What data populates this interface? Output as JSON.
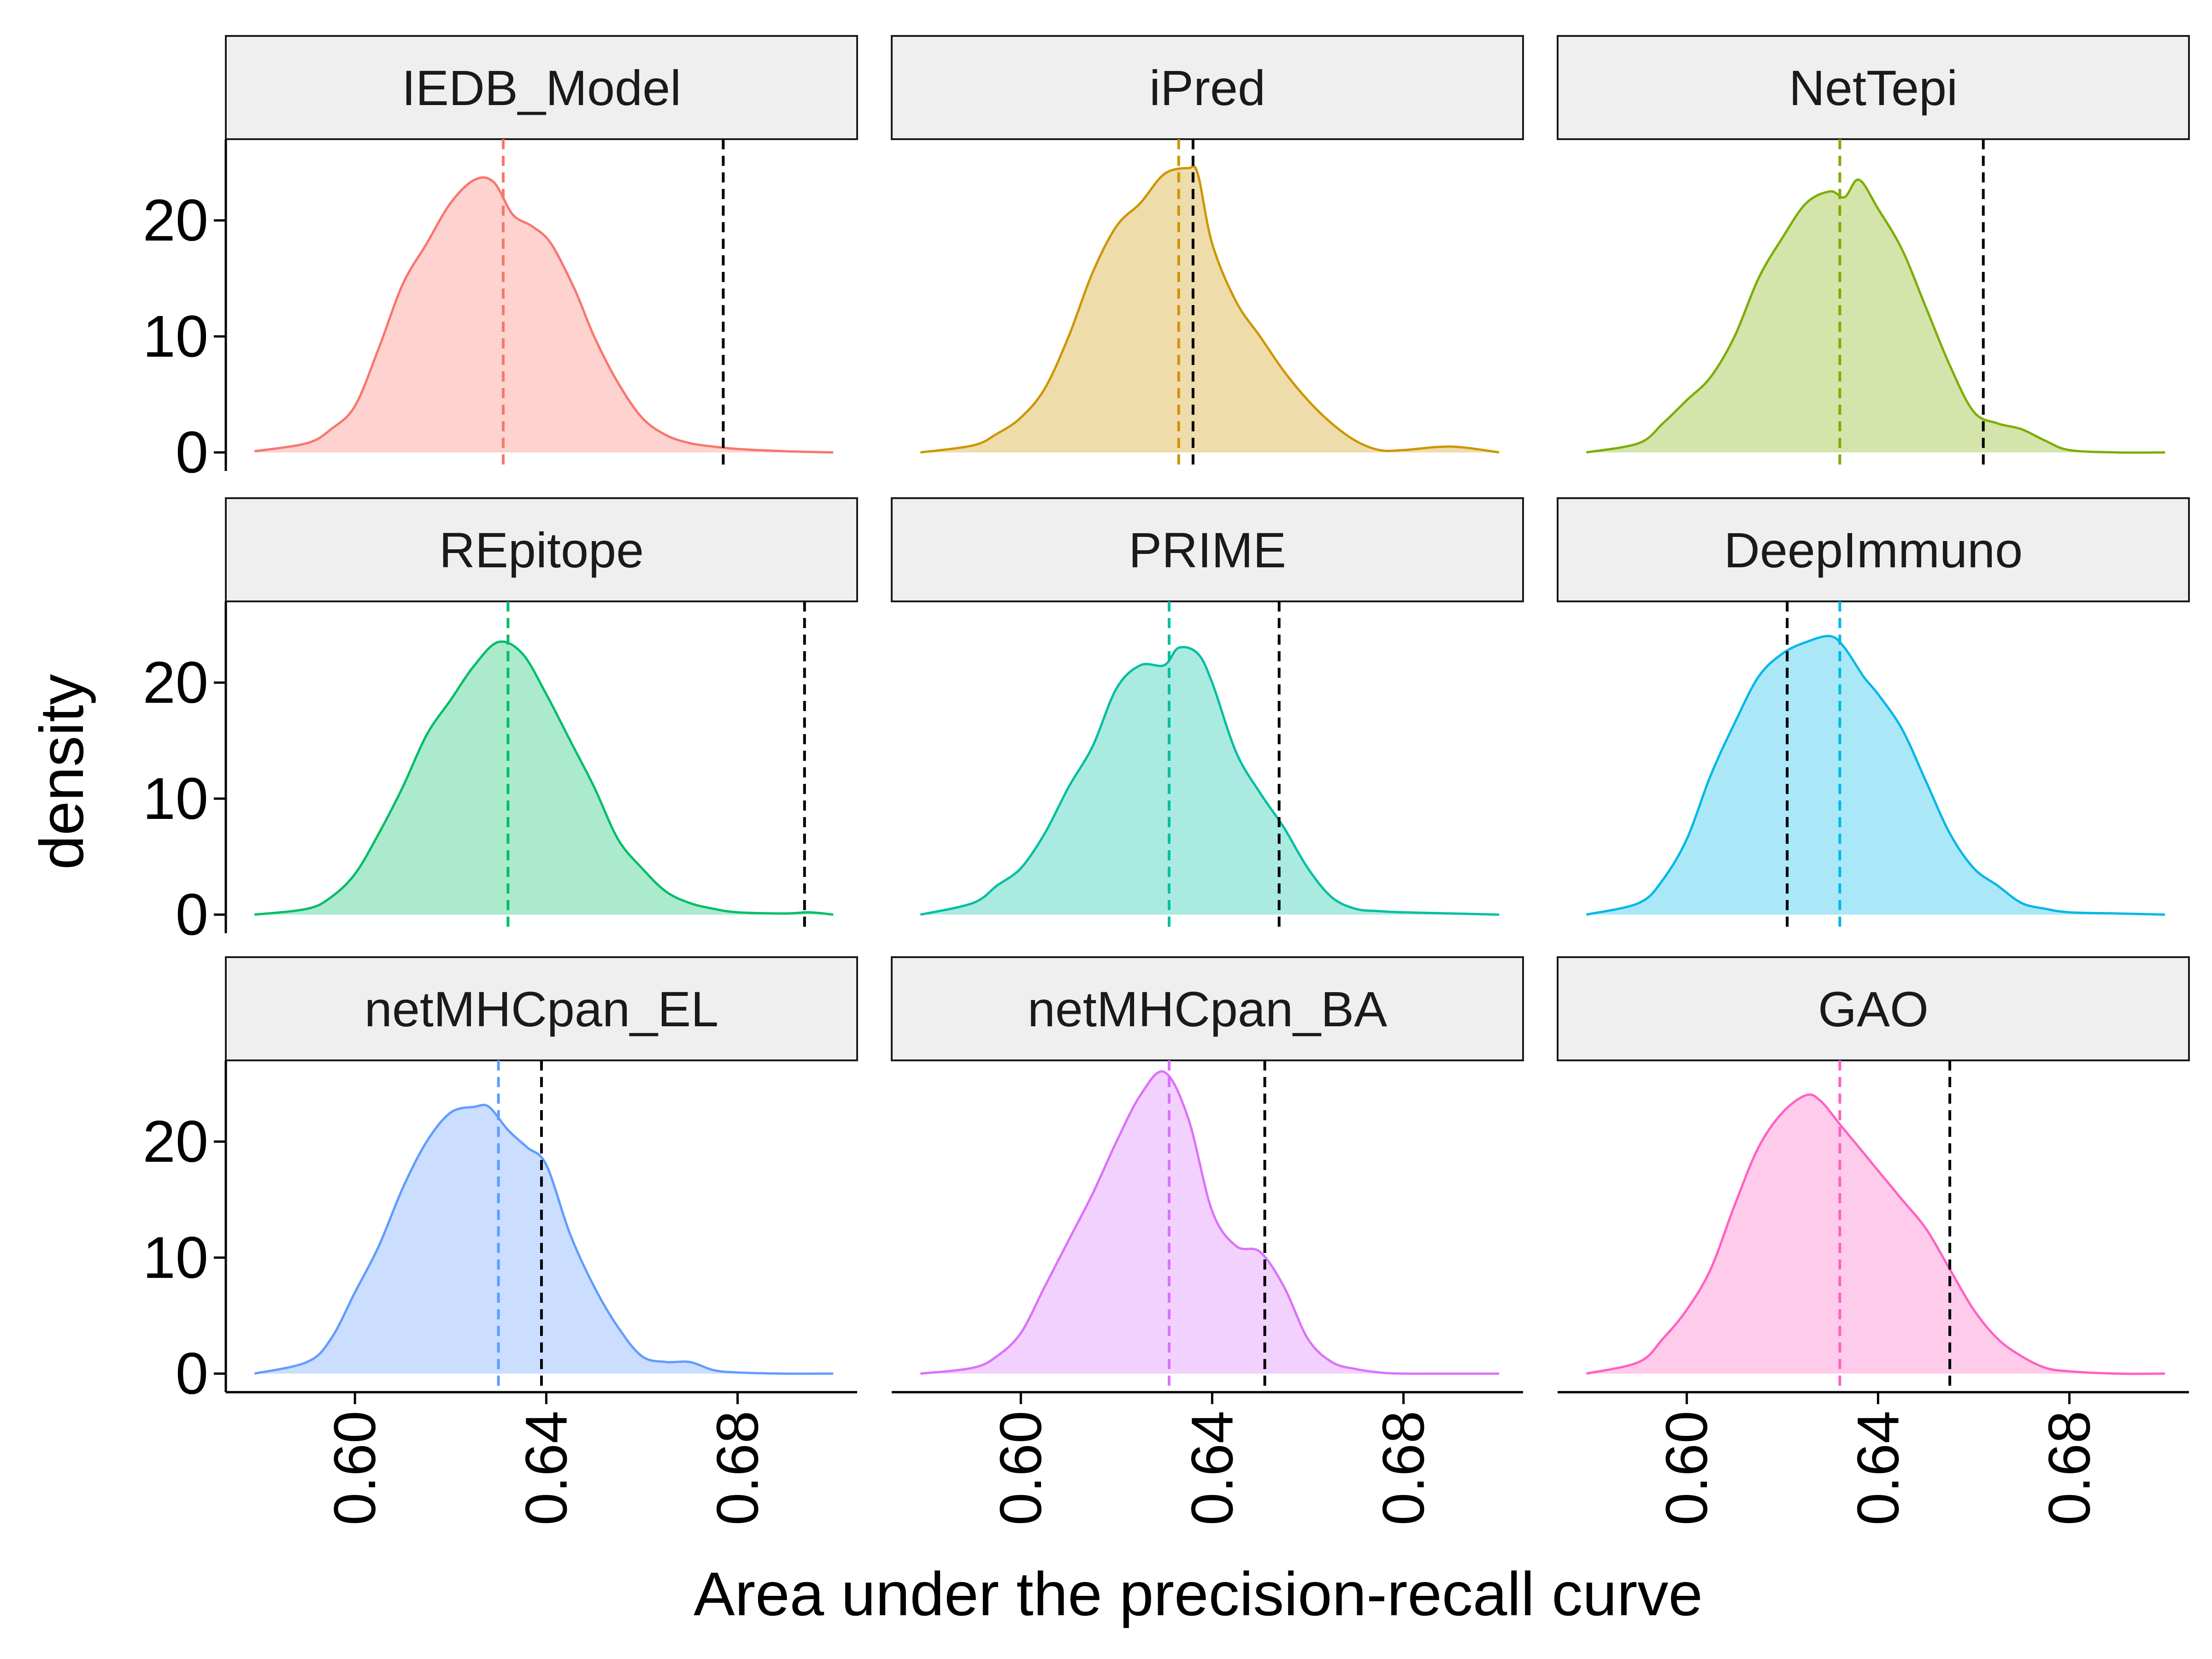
{
  "chart_data": {
    "type": "density",
    "title": "",
    "xlabel": "Area under the precision-recall curve",
    "ylabel": "density",
    "xlim": [
      0.573,
      0.705
    ],
    "ylim": [
      -1.6,
      27
    ],
    "x_ticks": [
      0.6,
      0.64,
      0.68
    ],
    "x_tick_labels": [
      "0.60",
      "0.64",
      "0.68"
    ],
    "y_ticks": [
      0,
      10,
      20
    ],
    "y_tick_labels": [
      "0",
      "10",
      "20"
    ],
    "legend": "none",
    "panels": [
      {
        "name": "IEDB_Model",
        "color": "#F8766D",
        "mean": 0.631,
        "observed": 0.677,
        "x": [
          0.579,
          0.59,
          0.595,
          0.6,
          0.605,
          0.61,
          0.615,
          0.62,
          0.625,
          0.629,
          0.633,
          0.637,
          0.641,
          0.646,
          0.65,
          0.655,
          0.66,
          0.665,
          0.67,
          0.675,
          0.68,
          0.69,
          0.7
        ],
        "y": [
          0.1,
          0.8,
          2.0,
          4.0,
          9.0,
          14.5,
          18.0,
          21.5,
          23.5,
          23.3,
          20.5,
          19.5,
          18.0,
          14.0,
          10.0,
          6.0,
          3.0,
          1.5,
          0.8,
          0.5,
          0.3,
          0.1,
          0.0
        ]
      },
      {
        "name": "iPred",
        "color": "#CD9600",
        "mean": 0.633,
        "observed": 0.636,
        "x": [
          0.579,
          0.59,
          0.595,
          0.6,
          0.605,
          0.61,
          0.615,
          0.62,
          0.625,
          0.63,
          0.635,
          0.637,
          0.64,
          0.645,
          0.65,
          0.655,
          0.66,
          0.665,
          0.67,
          0.675,
          0.68,
          0.69,
          0.7
        ],
        "y": [
          0.0,
          0.6,
          1.6,
          3.0,
          5.5,
          10.0,
          15.5,
          19.5,
          21.5,
          24.0,
          24.5,
          24.0,
          18.0,
          13.0,
          10.0,
          7.0,
          4.5,
          2.5,
          1.0,
          0.2,
          0.2,
          0.5,
          0.0
        ]
      },
      {
        "name": "NetTepi",
        "color": "#7CAE00",
        "mean": 0.632,
        "observed": 0.662,
        "x": [
          0.579,
          0.59,
          0.595,
          0.6,
          0.605,
          0.61,
          0.615,
          0.62,
          0.625,
          0.63,
          0.633,
          0.636,
          0.64,
          0.645,
          0.65,
          0.655,
          0.66,
          0.665,
          0.67,
          0.675,
          0.68,
          0.69,
          0.7
        ],
        "y": [
          0.0,
          0.8,
          2.5,
          4.5,
          6.5,
          10.0,
          15.0,
          18.5,
          21.5,
          22.5,
          22.0,
          23.5,
          21.0,
          17.5,
          12.5,
          7.5,
          3.5,
          2.5,
          2.0,
          1.0,
          0.2,
          0.0,
          0.0
        ]
      },
      {
        "name": "REpitope",
        "color": "#00BE67",
        "mean": 0.632,
        "observed": 0.694,
        "x": [
          0.579,
          0.59,
          0.595,
          0.6,
          0.605,
          0.61,
          0.615,
          0.62,
          0.625,
          0.63,
          0.635,
          0.64,
          0.645,
          0.65,
          0.655,
          0.66,
          0.665,
          0.67,
          0.675,
          0.68,
          0.69,
          0.695,
          0.7
        ],
        "y": [
          0.0,
          0.5,
          1.5,
          3.5,
          7.0,
          11.0,
          15.5,
          18.5,
          21.5,
          23.5,
          22.5,
          19.0,
          15.0,
          11.0,
          6.5,
          4.0,
          2.0,
          1.0,
          0.5,
          0.2,
          0.1,
          0.2,
          0.0
        ]
      },
      {
        "name": "PRIME",
        "color": "#00BFA0",
        "mean": 0.631,
        "observed": 0.654,
        "x": [
          0.579,
          0.59,
          0.595,
          0.6,
          0.605,
          0.61,
          0.615,
          0.62,
          0.625,
          0.63,
          0.633,
          0.637,
          0.64,
          0.645,
          0.65,
          0.655,
          0.66,
          0.665,
          0.67,
          0.675,
          0.68,
          0.69,
          0.7
        ],
        "y": [
          0.0,
          1.0,
          2.5,
          4.0,
          7.0,
          11.0,
          14.5,
          19.5,
          21.5,
          21.5,
          23.0,
          22.5,
          20.0,
          14.0,
          10.5,
          7.5,
          4.0,
          1.5,
          0.5,
          0.3,
          0.2,
          0.1,
          0.0
        ]
      },
      {
        "name": "DeepImmuno",
        "color": "#00B8E7",
        "mean": 0.632,
        "observed": 0.621,
        "x": [
          0.579,
          0.59,
          0.595,
          0.6,
          0.605,
          0.61,
          0.615,
          0.62,
          0.625,
          0.63,
          0.633,
          0.637,
          0.64,
          0.645,
          0.65,
          0.655,
          0.66,
          0.665,
          0.67,
          0.675,
          0.68,
          0.69,
          0.7
        ],
        "y": [
          0.0,
          1.0,
          3.0,
          6.5,
          12.0,
          16.5,
          20.5,
          22.5,
          23.5,
          24.0,
          23.0,
          20.5,
          19.0,
          16.0,
          11.5,
          7.0,
          4.0,
          2.5,
          1.0,
          0.5,
          0.2,
          0.1,
          0.0
        ]
      },
      {
        "name": "netMHCpan_EL",
        "color": "#619CFF",
        "mean": 0.63,
        "observed": 0.639,
        "x": [
          0.579,
          0.59,
          0.595,
          0.6,
          0.605,
          0.61,
          0.615,
          0.62,
          0.625,
          0.628,
          0.632,
          0.636,
          0.64,
          0.645,
          0.65,
          0.655,
          0.66,
          0.665,
          0.67,
          0.675,
          0.68,
          0.69,
          0.7
        ],
        "y": [
          0.0,
          1.0,
          3.0,
          7.0,
          11.0,
          16.0,
          20.0,
          22.5,
          23.0,
          23.0,
          21.0,
          19.5,
          18.0,
          12.0,
          7.5,
          4.0,
          1.5,
          1.0,
          1.0,
          0.3,
          0.1,
          0.0,
          0.0
        ]
      },
      {
        "name": "netMHCpan_BA",
        "color": "#DB72FB",
        "mean": 0.631,
        "observed": 0.651,
        "x": [
          0.579,
          0.59,
          0.595,
          0.6,
          0.605,
          0.61,
          0.615,
          0.62,
          0.625,
          0.63,
          0.635,
          0.64,
          0.645,
          0.65,
          0.655,
          0.66,
          0.665,
          0.67,
          0.675,
          0.68,
          0.69,
          0.7
        ],
        "y": [
          0.0,
          0.5,
          1.5,
          3.5,
          7.5,
          11.5,
          15.5,
          20.0,
          24.0,
          26.0,
          22.0,
          14.0,
          11.0,
          10.5,
          7.5,
          3.0,
          1.0,
          0.4,
          0.1,
          0.0,
          0.0,
          0.0
        ]
      },
      {
        "name": "GAO",
        "color": "#FF61C3",
        "mean": 0.632,
        "observed": 0.655,
        "x": [
          0.579,
          0.59,
          0.595,
          0.6,
          0.605,
          0.61,
          0.615,
          0.62,
          0.625,
          0.628,
          0.632,
          0.636,
          0.64,
          0.645,
          0.65,
          0.655,
          0.66,
          0.665,
          0.67,
          0.675,
          0.68,
          0.69,
          0.7
        ],
        "y": [
          0.0,
          1.0,
          3.0,
          5.5,
          9.0,
          14.5,
          19.5,
          22.5,
          24.0,
          23.5,
          21.5,
          19.5,
          17.5,
          15.0,
          12.5,
          9.0,
          5.5,
          3.0,
          1.5,
          0.5,
          0.2,
          0.0,
          0.0
        ]
      }
    ]
  }
}
